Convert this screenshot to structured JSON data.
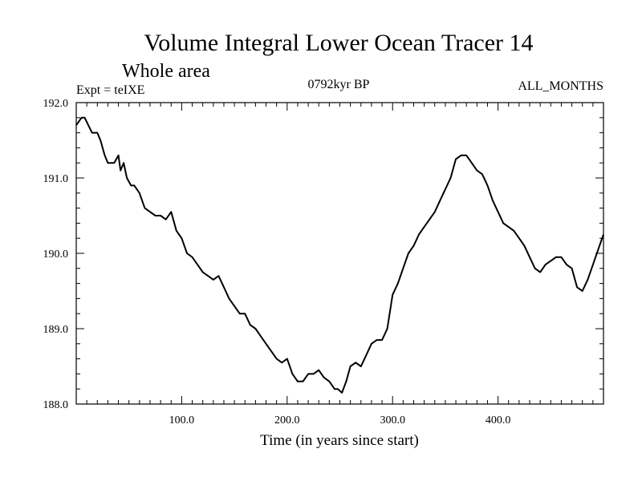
{
  "chart_data": {
    "type": "line",
    "title": "Volume Integral Lower Ocean Tracer 14",
    "subtitle": "Whole area",
    "left_label": "Expt = teIXE",
    "center_label": "0792kyr BP",
    "right_label": "ALL_MONTHS",
    "xlabel": "Time (in years since start)",
    "ylabel": "",
    "xlim": [
      0,
      500
    ],
    "ylim": [
      188.0,
      192.0
    ],
    "grid": false,
    "x_ticks": [
      100,
      200,
      300,
      400
    ],
    "x_tick_labels": [
      "100.0",
      "200.0",
      "300.0",
      "400.0"
    ],
    "y_ticks": [
      188.0,
      189.0,
      190.0,
      191.0,
      192.0
    ],
    "y_tick_labels": [
      "188.0",
      "189.0",
      "190.0",
      "191.0",
      "192.0"
    ],
    "series": [
      {
        "name": "Lower Ocean Tracer 14",
        "color": "#000000",
        "x": [
          0,
          5,
          8,
          15,
          20,
          23,
          27,
          30,
          32,
          36,
          40,
          42,
          45,
          48,
          52,
          55,
          60,
          65,
          70,
          75,
          80,
          85,
          90,
          95,
          100,
          105,
          110,
          115,
          120,
          125,
          130,
          135,
          140,
          145,
          150,
          155,
          160,
          165,
          170,
          175,
          180,
          185,
          190,
          195,
          200,
          205,
          210,
          215,
          220,
          225,
          230,
          235,
          240,
          245,
          248,
          252,
          256,
          260,
          265,
          270,
          275,
          280,
          285,
          290,
          295,
          300,
          305,
          310,
          315,
          320,
          325,
          330,
          335,
          340,
          345,
          350,
          355,
          360,
          365,
          370,
          375,
          380,
          385,
          390,
          395,
          400,
          405,
          410,
          415,
          420,
          425,
          430,
          435,
          440,
          445,
          450,
          455,
          460,
          465,
          470,
          475,
          480,
          485,
          490,
          495,
          500
        ],
        "values": [
          191.7,
          191.8,
          191.8,
          191.6,
          191.6,
          191.5,
          191.3,
          191.2,
          191.2,
          191.2,
          191.3,
          191.1,
          191.2,
          191.0,
          190.9,
          190.9,
          190.8,
          190.6,
          190.55,
          190.5,
          190.5,
          190.45,
          190.55,
          190.3,
          190.2,
          190.0,
          189.95,
          189.85,
          189.75,
          189.7,
          189.65,
          189.7,
          189.55,
          189.4,
          189.3,
          189.2,
          189.2,
          189.05,
          189.0,
          188.9,
          188.8,
          188.7,
          188.6,
          188.55,
          188.6,
          188.4,
          188.3,
          188.3,
          188.4,
          188.4,
          188.45,
          188.35,
          188.3,
          188.2,
          188.2,
          188.15,
          188.3,
          188.5,
          188.55,
          188.5,
          188.65,
          188.8,
          188.85,
          188.85,
          189.0,
          189.45,
          189.6,
          189.8,
          190.0,
          190.1,
          190.25,
          190.35,
          190.45,
          190.55,
          190.7,
          190.85,
          191.0,
          191.25,
          191.3,
          191.3,
          191.2,
          191.1,
          191.05,
          190.9,
          190.7,
          190.55,
          190.4,
          190.35,
          190.3,
          190.2,
          190.1,
          189.95,
          189.8,
          189.75,
          189.85,
          189.9,
          189.95,
          189.95,
          189.85,
          189.8,
          189.55,
          189.5,
          189.65,
          189.85,
          190.05,
          190.25
        ]
      }
    ]
  }
}
